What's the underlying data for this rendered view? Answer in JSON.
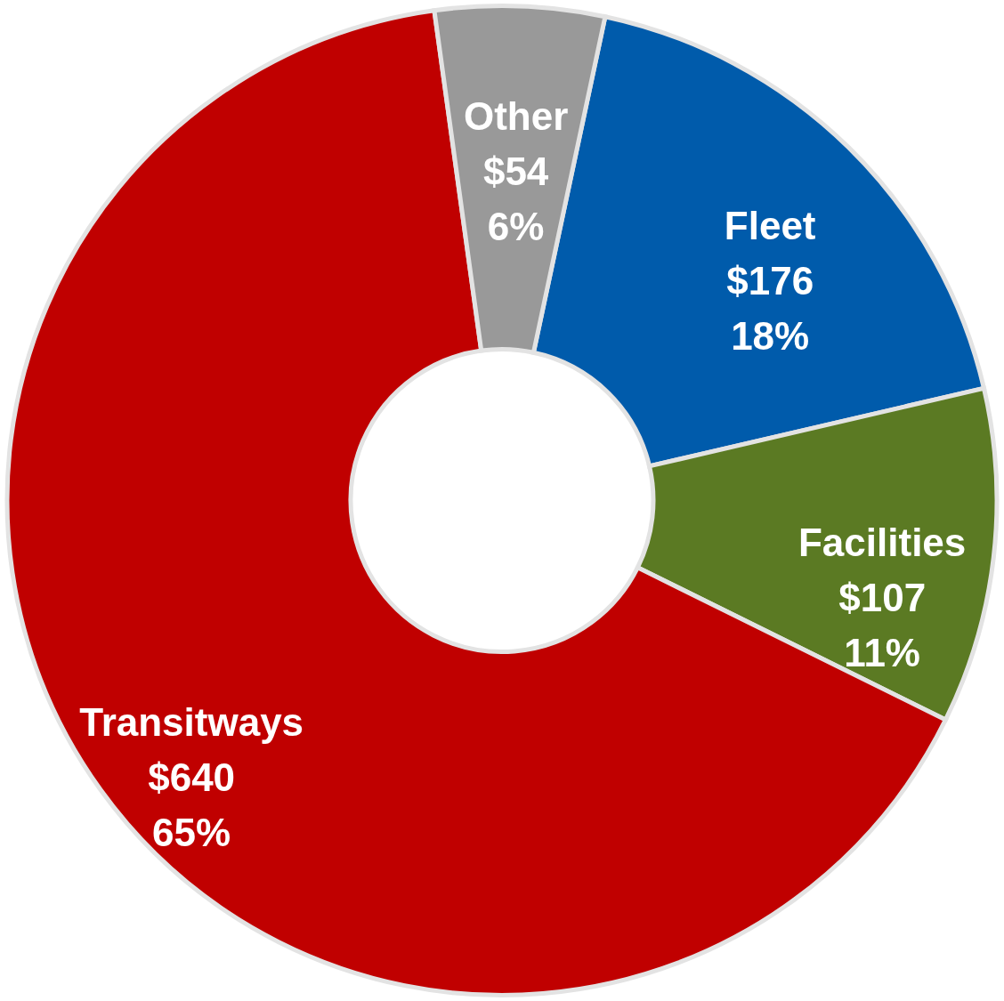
{
  "chart_data": {
    "type": "donut",
    "categories": [
      "Fleet",
      "Facilities",
      "Transitways",
      "Other"
    ],
    "values": [
      176,
      107,
      640,
      54
    ],
    "colors": [
      "#005bab",
      "#5b7a23",
      "#c00000",
      "#999999"
    ],
    "value_labels": [
      "$176\n18%",
      "$107\n11%",
      "$640\n65%",
      "$54\n6%"
    ]
  }
}
